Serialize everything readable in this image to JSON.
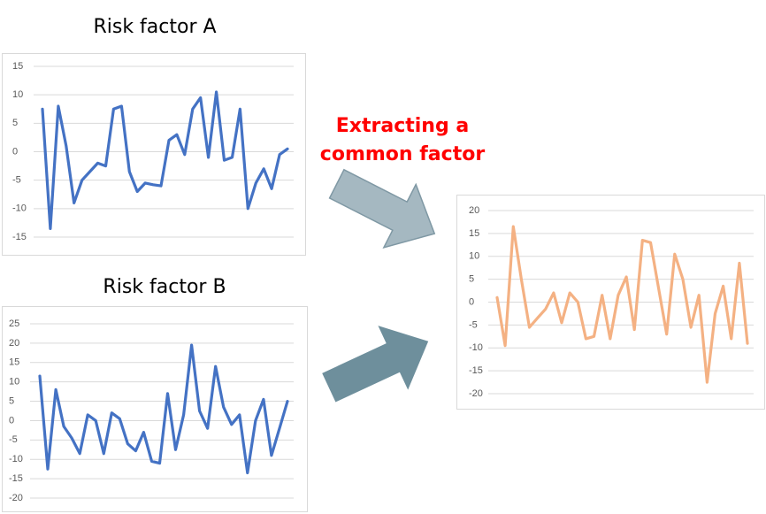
{
  "chart_data": [
    {
      "type": "line",
      "title": "Risk factor A",
      "color": "#4472c4",
      "values": [
        7.5,
        -13.5,
        8,
        1,
        -9,
        -5,
        -3.5,
        -2,
        -2.5,
        7.5,
        8,
        -3.5,
        -7,
        -5.5,
        -5.8,
        -6,
        2,
        3,
        -0.5,
        7.5,
        9.5,
        -1,
        10.5,
        -1.5,
        -1,
        7.5,
        -10,
        -5.5,
        -3,
        -6.5,
        -0.5,
        0.5
      ],
      "ylim": [
        -15,
        15
      ],
      "yticks": [
        -15,
        -10,
        -5,
        0,
        5,
        10,
        15
      ],
      "grid": true
    },
    {
      "type": "line",
      "title": "Risk factor B",
      "color": "#4472c4",
      "values": [
        11.5,
        -12.5,
        8,
        -1.5,
        -4.5,
        -8.5,
        1.5,
        0,
        -8.5,
        2,
        0.5,
        -6,
        -7.8,
        -3,
        -10.5,
        -11,
        7,
        -7.5,
        1.5,
        19.5,
        2.5,
        -2,
        14,
        3.5,
        -1,
        1.5,
        -13.5,
        0,
        5.5,
        -9,
        -2,
        5
      ],
      "ylim": [
        -20,
        25
      ],
      "yticks": [
        -20,
        -15,
        -10,
        -5,
        0,
        5,
        10,
        15,
        20,
        25
      ],
      "grid": true
    },
    {
      "type": "line",
      "color": "#f4b183",
      "values": [
        1,
        -9.5,
        16.5,
        5,
        -5.5,
        -3.5,
        -1.5,
        2,
        -4.5,
        2,
        0,
        -8,
        -7.5,
        1.5,
        -8,
        1.5,
        5.5,
        -6,
        13.5,
        13,
        3,
        -7,
        10.5,
        5,
        -5.5,
        1.5,
        -17.5,
        -2.5,
        3.5,
        -8,
        8.5,
        -9
      ],
      "ylim": [
        -20,
        20
      ],
      "yticks": [
        -20,
        -15,
        -10,
        -5,
        0,
        5,
        10,
        15,
        20
      ],
      "grid": true
    }
  ],
  "annotation": {
    "lines": [
      "Extracting a",
      "common factor"
    ]
  }
}
